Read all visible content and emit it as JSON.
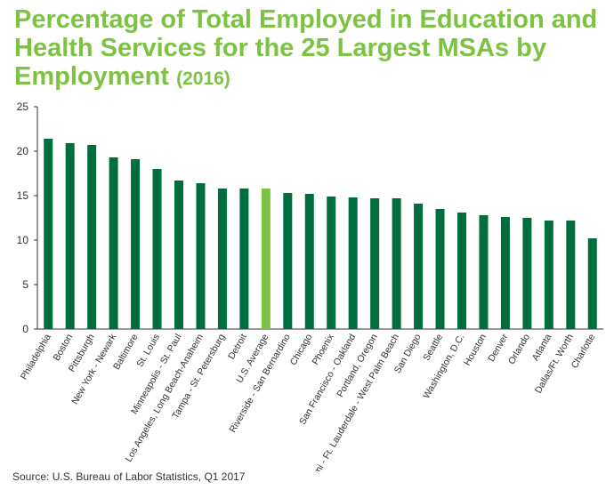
{
  "title_main": "Percentage of Total Employed in Education and Health Services for the 25 Largest MSAs by Employment",
  "title_year": "(2016)",
  "source": "Source: U.S. Bureau of Labor Statistics, Q1 2017",
  "colors": {
    "bar": "#006d3f",
    "highlight": "#7dc243",
    "title": "#7dc243",
    "axis": "#333333"
  },
  "chart_data": {
    "type": "bar",
    "title": "Percentage of Total Employed in Education and Health Services for the 25 Largest MSAs by Employment (2016)",
    "xlabel": "",
    "ylabel": "",
    "ylim": [
      0,
      25
    ],
    "yticks": [
      "0",
      "5",
      "10",
      "15",
      "20",
      "25"
    ],
    "grid": false,
    "highlight_category": "U.S. Average",
    "categories": [
      "Philadelphia",
      "Boston",
      "Pittsburgh",
      "New York - Newark",
      "Baltimore",
      "St. Louis",
      "Minneapolis - St. Paul",
      "Los Angeles, Long Beach-Anaheim",
      "Tampa - St. Petersburg",
      "Detroit",
      "U.S. Average",
      "Riverside - San Bernardino",
      "Chicago",
      "Phoenix",
      "San Francisco - Oakland",
      "Portland, Oregon",
      "Miami - Ft. Lauderdale - West Palm Beach",
      "San Diego",
      "Seattle",
      "Washington, D.C.",
      "Houston",
      "Denver",
      "Orlando",
      "Atlanta",
      "Dallas/Ft. Worth",
      "Charlotte"
    ],
    "values": [
      21.4,
      20.9,
      20.7,
      19.3,
      19.1,
      18.0,
      16.7,
      16.4,
      15.8,
      15.8,
      15.8,
      15.3,
      15.2,
      14.9,
      14.8,
      14.7,
      14.7,
      14.1,
      13.5,
      13.1,
      12.8,
      12.6,
      12.5,
      12.2,
      12.2,
      10.2
    ]
  }
}
